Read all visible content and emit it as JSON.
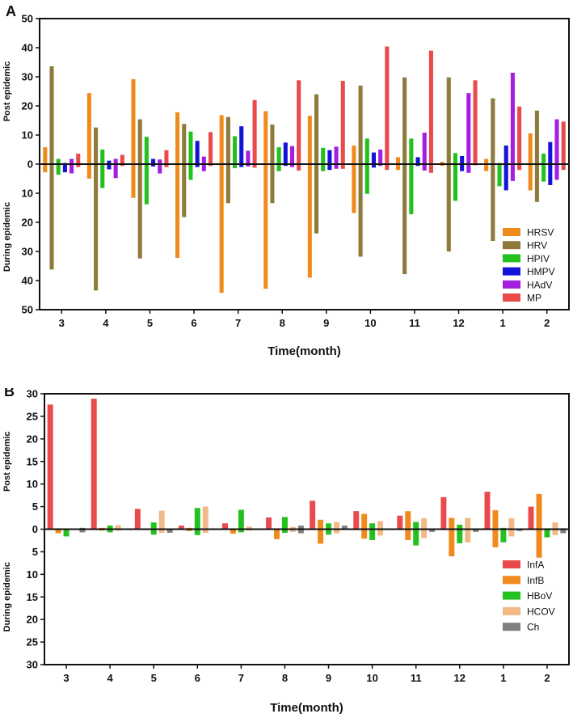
{
  "chart_data": [
    {
      "panel": "A",
      "type": "bar",
      "orientation": "diverging",
      "categories": [
        "3",
        "4",
        "5",
        "6",
        "7",
        "8",
        "9",
        "10",
        "11",
        "12",
        "1",
        "2"
      ],
      "xlabel": "Time(month)",
      "ylabel_top": "Post epidemic",
      "ylabel_bottom": "During epidemic",
      "ylim": [
        -50,
        50
      ],
      "yticks": [
        50,
        40,
        30,
        20,
        10,
        0,
        10,
        20,
        30,
        40,
        50
      ],
      "legend_position": "bottom-right",
      "series": [
        {
          "name": "HRSV",
          "color": "#f18a1c",
          "post": [
            5.8,
            24.4,
            29.2,
            17.8,
            16.8,
            18.2,
            16.6,
            6.4,
            2.4,
            0.8,
            1.8,
            10.6
          ],
          "during": [
            2.8,
            5.0,
            11.6,
            32.2,
            44.2,
            42.8,
            39.0,
            16.8,
            2.0,
            0.6,
            2.4,
            9.0
          ]
        },
        {
          "name": "HRV",
          "color": "#8e7a3a",
          "post": [
            33.6,
            12.6,
            15.4,
            13.8,
            16.2,
            13.6,
            24.0,
            27.0,
            29.8,
            29.8,
            22.6,
            18.4
          ],
          "during": [
            36.2,
            43.4,
            32.4,
            18.2,
            13.4,
            13.4,
            23.8,
            31.8,
            37.8,
            30.0,
            26.4,
            13.0
          ]
        },
        {
          "name": "HPIV",
          "color": "#22c11e",
          "post": [
            1.8,
            5.0,
            9.4,
            11.2,
            9.6,
            5.8,
            5.6,
            8.8,
            8.8,
            3.8,
            0.4,
            3.6
          ],
          "during": [
            3.6,
            8.2,
            13.8,
            5.4,
            1.4,
            2.4,
            2.4,
            10.2,
            17.2,
            12.6,
            7.6,
            6.0
          ]
        },
        {
          "name": "HMPV",
          "color": "#1414d6",
          "post": [
            0.4,
            1.2,
            1.8,
            8.0,
            13.0,
            7.4,
            4.8,
            4.0,
            2.4,
            2.8,
            6.4,
            7.6
          ],
          "during": [
            2.8,
            1.8,
            0.8,
            1.0,
            1.0,
            0.6,
            2.0,
            1.2,
            0.6,
            2.4,
            9.0,
            7.2
          ]
        },
        {
          "name": "HAdV",
          "color": "#a41ee0",
          "post": [
            1.8,
            1.8,
            1.6,
            2.6,
            4.6,
            6.2,
            6.0,
            5.0,
            10.8,
            24.4,
            31.4,
            15.4
          ],
          "during": [
            3.2,
            4.8,
            3.2,
            2.4,
            0.8,
            1.0,
            1.6,
            0.6,
            2.2,
            3.0,
            5.8,
            5.4
          ]
        },
        {
          "name": "MP",
          "color": "#e94a4c",
          "post": [
            3.6,
            3.2,
            4.8,
            11.0,
            22.0,
            28.8,
            28.6,
            40.4,
            39.0,
            28.8,
            19.8,
            14.6
          ],
          "during": [
            1.0,
            0.6,
            1.0,
            0.6,
            1.2,
            2.2,
            1.6,
            2.0,
            3.0,
            0.4,
            2.0,
            2.0
          ]
        }
      ]
    },
    {
      "panel": "B",
      "type": "bar",
      "orientation": "diverging",
      "categories": [
        "3",
        "4",
        "5",
        "6",
        "7",
        "8",
        "9",
        "10",
        "11",
        "12",
        "1",
        "2"
      ],
      "xlabel": "Time(month)",
      "ylabel_top": "Post epidemic",
      "ylabel_bottom": "During epidemic",
      "ylim": [
        -30,
        30
      ],
      "yticks": [
        30,
        25,
        20,
        15,
        10,
        5,
        0,
        5,
        10,
        15,
        20,
        25,
        30
      ],
      "legend_position": "bottom-right",
      "series": [
        {
          "name": "InfA",
          "color": "#e94a4c",
          "post": [
            27.6,
            28.9,
            4.5,
            0.8,
            1.3,
            2.6,
            6.3,
            4.0,
            3.0,
            7.1,
            8.3,
            5.0
          ],
          "during": [
            0.0,
            0.0,
            0.0,
            0.0,
            0.0,
            0.0,
            0.0,
            0.0,
            0.0,
            0.0,
            0.0,
            0.0
          ]
        },
        {
          "name": "InfB",
          "color": "#f18a1c",
          "post": [
            0.2,
            0.3,
            0.0,
            0.3,
            0.2,
            0.2,
            2.1,
            3.4,
            4.0,
            2.5,
            4.2,
            7.8
          ],
          "during": [
            0.9,
            0.3,
            0.2,
            0.4,
            1.0,
            2.2,
            3.2,
            2.1,
            2.4,
            6.0,
            4.0,
            6.3
          ]
        },
        {
          "name": "HBoV",
          "color": "#22c11e",
          "post": [
            0.0,
            0.8,
            1.5,
            4.7,
            4.3,
            2.7,
            1.3,
            1.3,
            1.6,
            1.0,
            0.3,
            0.2
          ],
          "during": [
            1.6,
            0.7,
            1.2,
            1.3,
            0.7,
            0.8,
            1.2,
            2.4,
            3.6,
            3.1,
            2.9,
            1.8
          ]
        },
        {
          "name": "HCOV",
          "color": "#f2b886",
          "post": [
            0.0,
            0.9,
            4.1,
            5.0,
            0.6,
            0.5,
            1.6,
            1.8,
            2.4,
            2.5,
            2.4,
            1.5
          ],
          "during": [
            0.0,
            0.3,
            0.8,
            0.8,
            0.3,
            0.6,
            0.9,
            1.4,
            2.0,
            2.9,
            1.6,
            1.3
          ]
        },
        {
          "name": "Ch",
          "color": "#7f7f7f",
          "post": [
            0.3,
            0.0,
            0.0,
            0.0,
            0.0,
            0.8,
            0.8,
            0.0,
            0.0,
            0.0,
            0.0,
            0.2
          ],
          "during": [
            0.7,
            0.0,
            0.8,
            0.0,
            0.0,
            0.9,
            0.0,
            0.0,
            0.6,
            0.6,
            0.4,
            0.9
          ]
        }
      ]
    }
  ]
}
